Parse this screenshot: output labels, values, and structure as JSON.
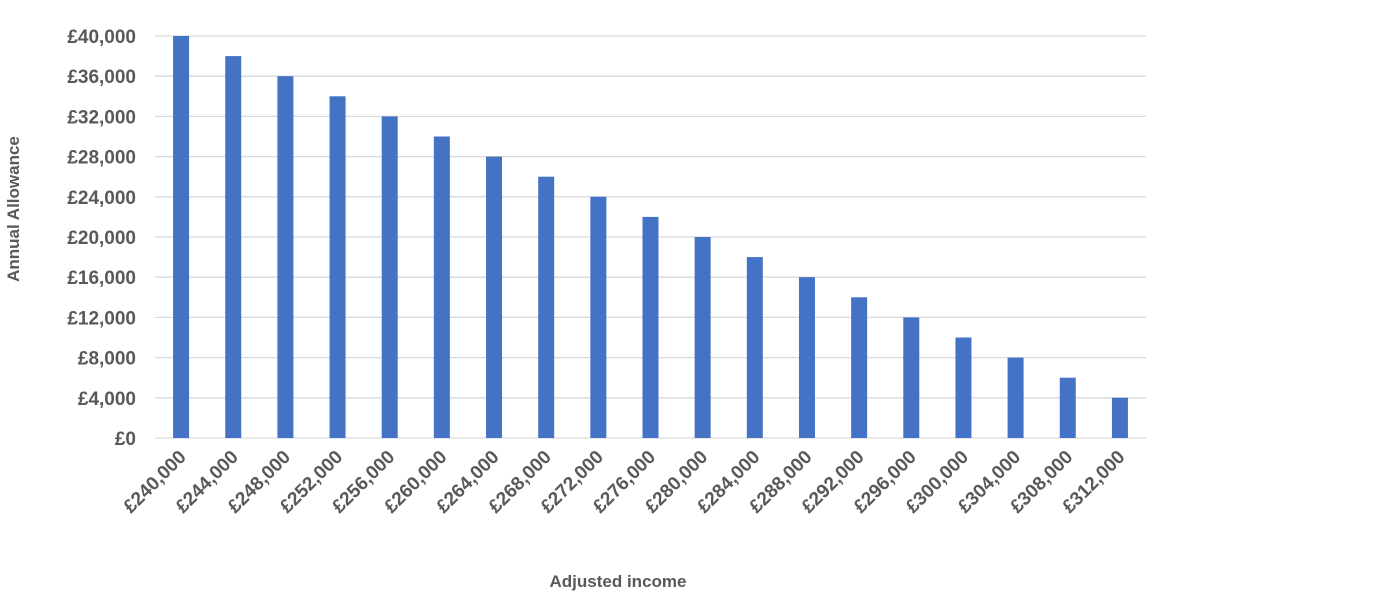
{
  "chart_data": {
    "type": "bar",
    "title": "",
    "xlabel": "Adjusted income",
    "ylabel": "Annual Allowance",
    "categories": [
      "£240,000",
      "£244,000",
      "£248,000",
      "£252,000",
      "£256,000",
      "£260,000",
      "£264,000",
      "£268,000",
      "£272,000",
      "£276,000",
      "£280,000",
      "£284,000",
      "£288,000",
      "£292,000",
      "£296,000",
      "£300,000",
      "£304,000",
      "£308,000",
      "£312,000"
    ],
    "values": [
      40000,
      38000,
      36000,
      34000,
      32000,
      30000,
      28000,
      26000,
      24000,
      22000,
      20000,
      18000,
      16000,
      14000,
      12000,
      10000,
      8000,
      6000,
      4000
    ],
    "ylim": [
      0,
      40000
    ],
    "yticks": [
      0,
      4000,
      8000,
      12000,
      16000,
      20000,
      24000,
      28000,
      32000,
      36000,
      40000
    ],
    "ytick_labels": [
      "£0",
      "£4,000",
      "£8,000",
      "£12,000",
      "£16,000",
      "£20,000",
      "£24,000",
      "£28,000",
      "£32,000",
      "£36,000",
      "£40,000"
    ],
    "grid": true,
    "legend": "none",
    "bar_color": "#4472c4"
  }
}
